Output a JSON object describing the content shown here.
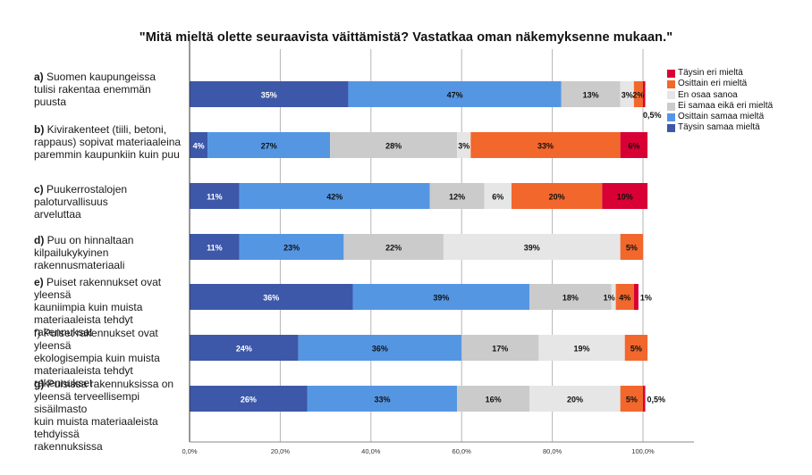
{
  "chart_data": {
    "type": "bar",
    "orientation": "horizontal",
    "stacked": true,
    "title": "\"Mitä mieltä olette seuraavista väittämistä? Vastatkaa oman näkemyksenne mukaan.\"",
    "xlabel": "",
    "ylabel": "",
    "xlim": [
      0,
      100
    ],
    "x_ticks": [
      "0,0%",
      "20,0%",
      "40,0%",
      "60,0%",
      "80,0%",
      "100,0%"
    ],
    "grid": true,
    "legend_position": "right",
    "categories": [
      {
        "prefix": "a)",
        "prefix_bold": true,
        "text": "Suomen kaupungeissa tulisi rakentaa enemmän puusta",
        "lines": [
          "a) Suomen kaupungeissa",
          "tulisi rakentaa enemmän",
          "puusta"
        ]
      },
      {
        "prefix": "b)",
        "prefix_bold": true,
        "text": "Kivirakenteet (tiili, betoni, rappaus) sopivat materiaaleina paremmin kaupunkiin kuin puu",
        "lines": [
          "b) Kivirakenteet (tiili, betoni,",
          "rappaus) sopivat materiaaleina",
          "paremmin kaupunkiin kuin puu"
        ]
      },
      {
        "prefix": "c)",
        "prefix_bold": true,
        "text": "Puukerrostalojen paloturvallisuus arveluttaa",
        "lines": [
          "c) Puukerrostalojen paloturvallisuus",
          "arveluttaa"
        ]
      },
      {
        "prefix": "d)",
        "prefix_bold": true,
        "text": "Puu on hinnaltaan kilpailukykyinen rakennusmateriaali",
        "lines": [
          "d) Puu on hinnaltaan",
          "kilpailukykyinen rakennusmateriaali"
        ]
      },
      {
        "prefix": "e)",
        "prefix_bold": true,
        "text": "Puiset rakennukset ovat yleensä kauniimpia kuin muista materiaaleista tehdyt rakennukset",
        "lines": [
          "e) Puiset rakennukset ovat yleensä",
          "kauniimpia kuin muista",
          "materiaaleista tehdyt rakennukset"
        ]
      },
      {
        "prefix": "f)",
        "prefix_bold": false,
        "text": "Puiset rakennukset ovat yleensä ekologisempia kuin muista materiaaleista tehdyt rakennukset",
        "lines": [
          "f) Puiset rakennukset ovat yleensä",
          "ekologisempia kuin muista",
          "materiaaleista tehdyt rakennukset"
        ]
      },
      {
        "prefix": "g)",
        "prefix_bold": true,
        "text": "Puisissa rakennuksissa on yleensä terveellisempi sisäilmasto kuin muista materiaaleista tehdyissä rakennuksissa",
        "lines": [
          "g) Puisissa rakennuksissa on",
          "yleensä terveellisempi sisäilmasto",
          "kuin muista materiaaleista tehdyissä",
          "rakennuksissa"
        ]
      }
    ],
    "series": [
      {
        "name": "Täysin samaa mieltä",
        "color": "#3d58a8",
        "label_color": "#ffffff",
        "values": [
          35,
          4,
          11,
          11,
          36,
          24,
          26
        ],
        "labels": [
          "35%",
          "4%",
          "11%",
          "11%",
          "36%",
          "24%",
          "26%"
        ]
      },
      {
        "name": "Osittain samaa mieltä",
        "color": "#5596e3",
        "label_color": "#111111",
        "values": [
          47,
          27,
          42,
          23,
          39,
          36,
          33
        ],
        "labels": [
          "47%",
          "27%",
          "42%",
          "23%",
          "39%",
          "36%",
          "33%"
        ]
      },
      {
        "name": "Ei samaa eikä eri mieltä",
        "color": "#cbcbcb",
        "label_color": "#111111",
        "values": [
          13,
          28,
          12,
          22,
          18,
          17,
          16
        ],
        "labels": [
          "13%",
          "28%",
          "12%",
          "22%",
          "18%",
          "17%",
          "16%"
        ]
      },
      {
        "name": "En osaa sanoa",
        "color": "#e6e6e6",
        "label_color": "#111111",
        "values": [
          3,
          3,
          6,
          39,
          1,
          19,
          20
        ],
        "labels": [
          "3%",
          "3%",
          "6%",
          "39%",
          "1%",
          "19%",
          "20%"
        ]
      },
      {
        "name": "Osittain eri mieltä",
        "color": "#f2672c",
        "label_color": "#111111",
        "values": [
          2,
          33,
          20,
          5,
          4,
          5,
          5
        ],
        "labels": [
          "2%",
          "33%",
          "20%",
          "5%",
          "4%",
          "5%",
          "5%"
        ]
      },
      {
        "name": "Täysin eri mieltä",
        "color": "#d80034",
        "label_color": "#111111",
        "values": [
          0.5,
          6,
          10,
          0,
          1,
          0,
          0.5
        ],
        "labels": [
          "0,5%",
          "6%",
          "10%",
          "",
          "1%",
          "",
          "0,5%"
        ]
      }
    ],
    "legend": [
      {
        "name": "Täysin eri mieltä",
        "color": "#d80034"
      },
      {
        "name": "Osittain eri mieltä",
        "color": "#f2672c"
      },
      {
        "name": "En osaa sanoa",
        "color": "#e6e6e6"
      },
      {
        "name": "Ei samaa eikä eri mieltä",
        "color": "#cbcbcb"
      },
      {
        "name": "Osittain samaa mieltä",
        "color": "#5596e3"
      },
      {
        "name": "Täysin samaa mieltä",
        "color": "#3d58a8"
      }
    ]
  }
}
